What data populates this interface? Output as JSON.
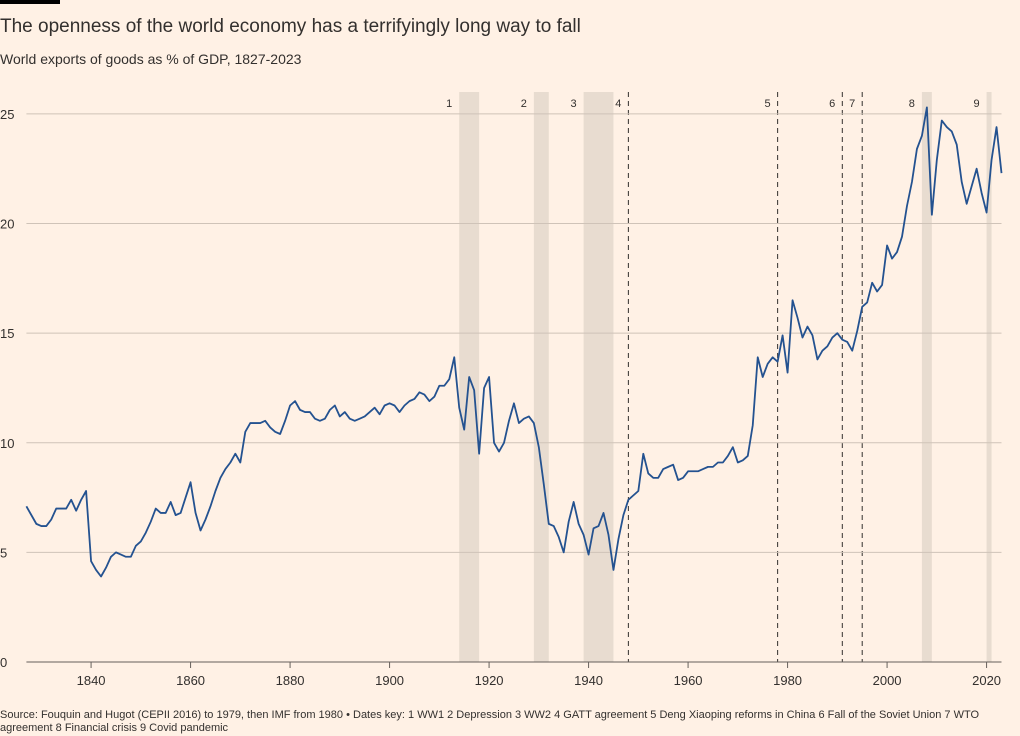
{
  "chart_data": {
    "type": "line",
    "title": "The openness of the world economy has a terrifyingly long way to fall",
    "subtitle": "World exports of goods as % of GDP, 1827-2023",
    "source": "Source: Fouquin and Hugot (CEPII 2016) to 1979, then IMF from 1980 • Dates key: 1 WW1 2 Depression 3 WW2 4 GATT agreement 5 Deng Xiaoping reforms in China 6 Fall of the Soviet Union 7 WTO agreement 8 Financial crisis 9 Covid pandemic",
    "color": "#245290",
    "xlim": [
      1827,
      2023
    ],
    "ylim": [
      0,
      26
    ],
    "xticks": [
      1840,
      1860,
      1880,
      1900,
      1920,
      1940,
      1960,
      1980,
      2000,
      2020
    ],
    "yticks": [
      0,
      5,
      10,
      15,
      20,
      25
    ],
    "grid": true,
    "events": [
      {
        "label": "1",
        "start": 1914,
        "end": 1918
      },
      {
        "label": "2",
        "start": 1929,
        "end": 1932
      },
      {
        "label": "3",
        "start": 1939,
        "end": 1945
      },
      {
        "label": "4",
        "start": 1948
      },
      {
        "label": "5",
        "start": 1978
      },
      {
        "label": "6",
        "start": 1991
      },
      {
        "label": "7",
        "start": 1995
      },
      {
        "label": "8",
        "start": 2007,
        "end": 2009
      },
      {
        "label": "9",
        "start": 2020,
        "end": 2021
      }
    ],
    "x": [
      1827,
      1828,
      1829,
      1830,
      1831,
      1832,
      1833,
      1834,
      1835,
      1836,
      1837,
      1838,
      1839,
      1840,
      1841,
      1842,
      1843,
      1844,
      1845,
      1846,
      1847,
      1848,
      1849,
      1850,
      1851,
      1852,
      1853,
      1854,
      1855,
      1856,
      1857,
      1858,
      1859,
      1860,
      1861,
      1862,
      1863,
      1864,
      1865,
      1866,
      1867,
      1868,
      1869,
      1870,
      1871,
      1872,
      1873,
      1874,
      1875,
      1876,
      1877,
      1878,
      1879,
      1880,
      1881,
      1882,
      1883,
      1884,
      1885,
      1886,
      1887,
      1888,
      1889,
      1890,
      1891,
      1892,
      1893,
      1894,
      1895,
      1896,
      1897,
      1898,
      1899,
      1900,
      1901,
      1902,
      1903,
      1904,
      1905,
      1906,
      1907,
      1908,
      1909,
      1910,
      1911,
      1912,
      1913,
      1914,
      1915,
      1916,
      1917,
      1918,
      1919,
      1920,
      1921,
      1922,
      1923,
      1924,
      1925,
      1926,
      1927,
      1928,
      1929,
      1930,
      1931,
      1932,
      1933,
      1934,
      1935,
      1936,
      1937,
      1938,
      1939,
      1940,
      1941,
      1942,
      1943,
      1944,
      1945,
      1946,
      1947,
      1948,
      1949,
      1950,
      1951,
      1952,
      1953,
      1954,
      1955,
      1956,
      1957,
      1958,
      1959,
      1960,
      1961,
      1962,
      1963,
      1964,
      1965,
      1966,
      1967,
      1968,
      1969,
      1970,
      1971,
      1972,
      1973,
      1974,
      1975,
      1976,
      1977,
      1978,
      1979,
      1980,
      1981,
      1982,
      1983,
      1984,
      1985,
      1986,
      1987,
      1988,
      1989,
      1990,
      1991,
      1992,
      1993,
      1994,
      1995,
      1996,
      1997,
      1998,
      1999,
      2000,
      2001,
      2002,
      2003,
      2004,
      2005,
      2006,
      2007,
      2008,
      2009,
      2010,
      2011,
      2012,
      2013,
      2014,
      2015,
      2016,
      2017,
      2018,
      2019,
      2020,
      2021,
      2022,
      2023
    ],
    "values": [
      7.1,
      6.7,
      6.3,
      6.2,
      6.2,
      6.5,
      7.0,
      7.0,
      7.0,
      7.4,
      6.9,
      7.4,
      7.8,
      4.6,
      4.2,
      3.9,
      4.3,
      4.8,
      5.0,
      4.9,
      4.8,
      4.8,
      5.3,
      5.5,
      5.9,
      6.4,
      7.0,
      6.8,
      6.8,
      7.3,
      6.7,
      6.8,
      7.5,
      8.2,
      6.8,
      6.0,
      6.5,
      7.1,
      7.8,
      8.4,
      8.8,
      9.1,
      9.5,
      9.1,
      10.5,
      10.9,
      10.9,
      10.9,
      11.0,
      10.7,
      10.5,
      10.4,
      11.0,
      11.7,
      11.9,
      11.5,
      11.4,
      11.4,
      11.1,
      11.0,
      11.1,
      11.5,
      11.7,
      11.2,
      11.4,
      11.1,
      11.0,
      11.1,
      11.2,
      11.4,
      11.6,
      11.3,
      11.7,
      11.8,
      11.7,
      11.4,
      11.7,
      11.9,
      12.0,
      12.3,
      12.2,
      11.9,
      12.1,
      12.6,
      12.6,
      12.9,
      13.9,
      11.6,
      10.6,
      13.0,
      12.4,
      9.5,
      12.5,
      13.0,
      10.0,
      9.6,
      10.0,
      11.0,
      11.8,
      10.9,
      11.1,
      11.2,
      10.9,
      9.8,
      8.1,
      6.3,
      6.2,
      5.7,
      5.0,
      6.4,
      7.3,
      6.3,
      5.8,
      4.9,
      6.1,
      6.2,
      6.8,
      5.8,
      4.2,
      5.6,
      6.7,
      7.4,
      7.6,
      7.8,
      9.5,
      8.6,
      8.4,
      8.4,
      8.8,
      8.9,
      9.0,
      8.3,
      8.4,
      8.7,
      8.7,
      8.7,
      8.8,
      8.9,
      8.9,
      9.1,
      9.1,
      9.4,
      9.8,
      9.1,
      9.2,
      9.4,
      10.8,
      13.9,
      13.0,
      13.6,
      13.9,
      13.7,
      14.9,
      13.2,
      16.5,
      15.7,
      14.8,
      15.3,
      14.9,
      13.8,
      14.2,
      14.4,
      14.8,
      15.0,
      14.7,
      14.6,
      14.2,
      15.1,
      16.2,
      16.4,
      17.3,
      16.9,
      17.2,
      19.0,
      18.4,
      18.7,
      19.4,
      20.8,
      21.9,
      23.4,
      24.0,
      25.3,
      20.4,
      22.9,
      24.7,
      24.4,
      24.2,
      23.6,
      21.9,
      20.9,
      21.7,
      22.5,
      21.4,
      20.5,
      22.9,
      24.4,
      22.3
    ]
  }
}
